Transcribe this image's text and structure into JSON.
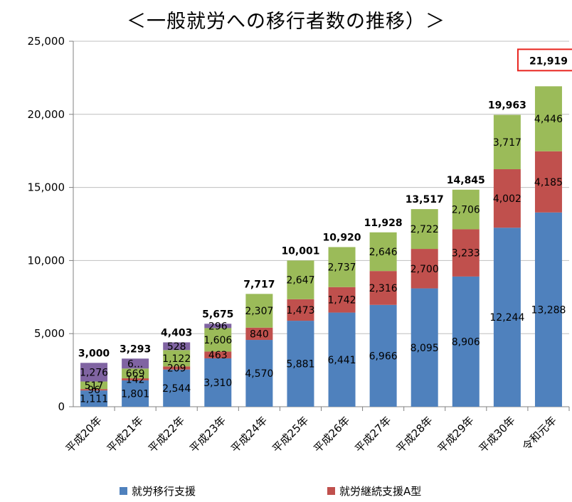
{
  "chart_data": {
    "type": "bar",
    "stacked": true,
    "title": "＜一般就労への移行者数の推移）＞",
    "xlabel": "",
    "ylabel": "",
    "ylim": [
      0,
      25000
    ],
    "yticks": [
      "0",
      "5,000",
      "10,000",
      "15,000",
      "20,000",
      "25,000"
    ],
    "grid": true,
    "categories": [
      "平成20年",
      "平成21年",
      "平成22年",
      "平成23年",
      "平成24年",
      "平成25年",
      "平成26年",
      "平成27年",
      "平成28年",
      "平成29年",
      "平成30年",
      "令和元年"
    ],
    "series": [
      {
        "name": "就労移行支援",
        "color": "#4f81bd",
        "values": [
          1111,
          1801,
          2544,
          3310,
          4570,
          5881,
          6441,
          6966,
          8095,
          8906,
          12244,
          13288
        ],
        "labels": [
          "1,111",
          "1,801",
          "2,544",
          "3,310",
          "4,570",
          "5,881",
          "6,441",
          "6,966",
          "8,095",
          "8,906",
          "12,244",
          "13,288"
        ]
      },
      {
        "name": "就労継続支援A型",
        "color": "#c0504d",
        "values": [
          96,
          142,
          209,
          463,
          840,
          1473,
          1742,
          2316,
          2700,
          3233,
          4002,
          4185
        ],
        "labels": [
          "96",
          "142",
          "209",
          "463",
          "840",
          "1,473",
          "1,742",
          "2,316",
          "2,700",
          "3,233",
          "4,002",
          "4,185"
        ]
      },
      {
        "name": "",
        "color": "#9bbb59",
        "values": [
          517,
          669,
          1122,
          1606,
          2307,
          2647,
          2737,
          2646,
          2722,
          2706,
          3717,
          4446
        ],
        "labels": [
          "517",
          "669",
          "1,122",
          "1,606",
          "2,307",
          "2,647",
          "2,737",
          "2,646",
          "2,722",
          "2,706",
          "3,717",
          "4,446"
        ]
      },
      {
        "name": "",
        "color": "#8064a2",
        "values": [
          1276,
          681,
          528,
          296,
          0,
          0,
          0,
          0,
          0,
          0,
          0,
          0
        ],
        "labels": [
          "1,276",
          "6...",
          "528",
          "296",
          "",
          "",
          "",
          "",
          "",
          "",
          "",
          ""
        ]
      }
    ],
    "totals": [
      3000,
      3293,
      4403,
      5675,
      7717,
      10001,
      10920,
      11928,
      13517,
      14845,
      19963,
      21919
    ],
    "total_labels": [
      "3,000",
      "3,293",
      "4,403",
      "5,675",
      "7,717",
      "10,001",
      "10,920",
      "11,928",
      "13,517",
      "14,845",
      "19,963",
      "21,919"
    ],
    "highlighted_total_index": 11,
    "highlight_color": "#e8251f",
    "legend_position": "bottom"
  }
}
